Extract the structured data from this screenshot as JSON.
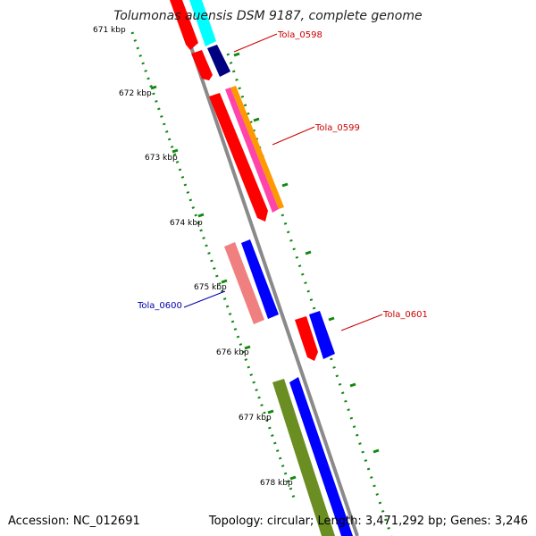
{
  "title": "Tolumonas auensis DSM 9187, complete genome",
  "footer": {
    "accession": "Accession: NC_012691",
    "summary": "Topology: circular; Length: 3,471,292 bp; Genes: 3,246"
  },
  "ticks": [
    {
      "label": "671 kbp"
    },
    {
      "label": "672 kbp"
    },
    {
      "label": "673 kbp"
    },
    {
      "label": "674 kbp"
    },
    {
      "label": "675 kbp"
    },
    {
      "label": "676 kbp"
    },
    {
      "label": "677 kbp"
    },
    {
      "label": "678 kbp"
    }
  ],
  "gene_labels": [
    {
      "text": "Tola_0598",
      "color": "#cc0000"
    },
    {
      "text": "Tola_0599",
      "color": "#cc0000"
    },
    {
      "text": "Tola_0600",
      "color": "#0000aa"
    },
    {
      "text": "Tola_0601",
      "color": "#cc0000"
    }
  ],
  "colors": {
    "backbone": "#8a8a8a",
    "tick": "#118811",
    "red": "#ff0000",
    "blue": "#0000ff",
    "navy": "#000080",
    "cyan": "#00ffff",
    "salmon": "#f08080",
    "magenta": "#ff44aa",
    "orange": "#ff9900",
    "olive": "#6b8e23"
  }
}
